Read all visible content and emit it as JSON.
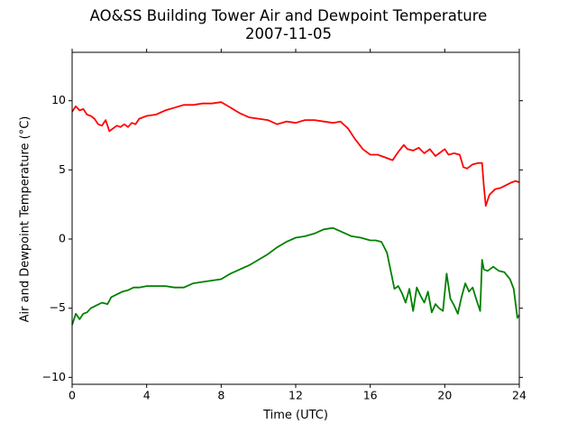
{
  "chart_data": {
    "type": "line",
    "title": "AO&SS Building Tower Air and Dewpoint Temperature",
    "subtitle": "2007-11-05",
    "xlabel": "Time (UTC)",
    "ylabel": "Air and Dewpoint Temperature (°C)",
    "xlim": [
      0,
      24
    ],
    "ylim": [
      -10.5,
      13.5
    ],
    "xticks": [
      0,
      4,
      8,
      12,
      16,
      20,
      24
    ],
    "yticks": [
      -10,
      -5,
      0,
      5,
      10
    ],
    "grid": false,
    "legend": "none",
    "series": [
      {
        "color": "#ff0000",
        "x": [
          0,
          0.2,
          0.4,
          0.6,
          0.8,
          1.0,
          1.2,
          1.4,
          1.6,
          1.8,
          2.0,
          2.2,
          2.4,
          2.6,
          2.8,
          3.0,
          3.2,
          3.4,
          3.6,
          3.8,
          4.0,
          4.5,
          5.0,
          5.5,
          6.0,
          6.5,
          7.0,
          7.5,
          8.0,
          8.5,
          9.0,
          9.5,
          10.0,
          10.5,
          11.0,
          11.5,
          12.0,
          12.5,
          13.0,
          13.5,
          14.0,
          14.4,
          14.8,
          15.2,
          15.6,
          16.0,
          16.4,
          16.8,
          17.2,
          17.5,
          17.8,
          18.0,
          18.3,
          18.6,
          18.9,
          19.2,
          19.5,
          19.8,
          20.0,
          20.2,
          20.5,
          20.8,
          21.0,
          21.2,
          21.5,
          21.8,
          22.0,
          22.1,
          22.2,
          22.4,
          22.7,
          23.0,
          23.3,
          23.6,
          23.8,
          24.0
        ],
        "y": [
          9.2,
          9.6,
          9.3,
          9.4,
          9.0,
          8.9,
          8.7,
          8.3,
          8.2,
          8.6,
          7.8,
          8.0,
          8.2,
          8.1,
          8.3,
          8.1,
          8.4,
          8.3,
          8.7,
          8.8,
          8.9,
          9.0,
          9.3,
          9.5,
          9.7,
          9.7,
          9.8,
          9.8,
          9.9,
          9.5,
          9.1,
          8.8,
          8.7,
          8.6,
          8.3,
          8.5,
          8.4,
          8.6,
          8.6,
          8.5,
          8.4,
          8.5,
          8.0,
          7.2,
          6.5,
          6.1,
          6.1,
          5.9,
          5.7,
          6.3,
          6.8,
          6.5,
          6.4,
          6.6,
          6.2,
          6.5,
          6.0,
          6.3,
          6.5,
          6.1,
          6.2,
          6.1,
          5.2,
          5.1,
          5.4,
          5.5,
          5.5,
          3.8,
          2.4,
          3.2,
          3.6,
          3.7,
          3.9,
          4.1,
          4.2,
          4.1
        ]
      },
      {
        "color": "#008000",
        "x": [
          0,
          0.2,
          0.4,
          0.6,
          0.8,
          1.0,
          1.3,
          1.6,
          1.9,
          2.1,
          2.4,
          2.7,
          3.0,
          3.3,
          3.6,
          4.0,
          4.5,
          5.0,
          5.5,
          6.0,
          6.5,
          7.0,
          7.5,
          8.0,
          8.5,
          9.0,
          9.5,
          10.0,
          10.5,
          11.0,
          11.5,
          12.0,
          12.5,
          13.0,
          13.5,
          14.0,
          14.5,
          15.0,
          15.5,
          16.0,
          16.3,
          16.6,
          16.9,
          17.1,
          17.3,
          17.5,
          17.7,
          17.9,
          18.1,
          18.3,
          18.5,
          18.7,
          18.9,
          19.1,
          19.3,
          19.5,
          19.7,
          19.9,
          20.1,
          20.3,
          20.5,
          20.7,
          20.9,
          21.1,
          21.3,
          21.5,
          21.7,
          21.9,
          22.0,
          22.1,
          22.3,
          22.6,
          22.9,
          23.2,
          23.5,
          23.7,
          23.9,
          24.0
        ],
        "y": [
          -6.2,
          -5.4,
          -5.8,
          -5.4,
          -5.3,
          -5.0,
          -4.8,
          -4.6,
          -4.7,
          -4.2,
          -4.0,
          -3.8,
          -3.7,
          -3.5,
          -3.5,
          -3.4,
          -3.4,
          -3.4,
          -3.5,
          -3.5,
          -3.2,
          -3.1,
          -3.0,
          -2.9,
          -2.5,
          -2.2,
          -1.9,
          -1.5,
          -1.1,
          -0.6,
          -0.2,
          0.1,
          0.2,
          0.4,
          0.7,
          0.8,
          0.5,
          0.2,
          0.1,
          -0.1,
          -0.1,
          -0.2,
          -1.0,
          -2.3,
          -3.6,
          -3.4,
          -3.9,
          -4.6,
          -3.6,
          -5.2,
          -3.5,
          -4.1,
          -4.6,
          -3.8,
          -5.3,
          -4.7,
          -5.0,
          -5.2,
          -2.5,
          -4.3,
          -4.8,
          -5.4,
          -4.2,
          -3.2,
          -3.8,
          -3.5,
          -4.4,
          -5.2,
          -1.5,
          -2.2,
          -2.3,
          -2.0,
          -2.3,
          -2.4,
          -2.9,
          -3.6,
          -5.7,
          -5.5
        ]
      }
    ]
  }
}
